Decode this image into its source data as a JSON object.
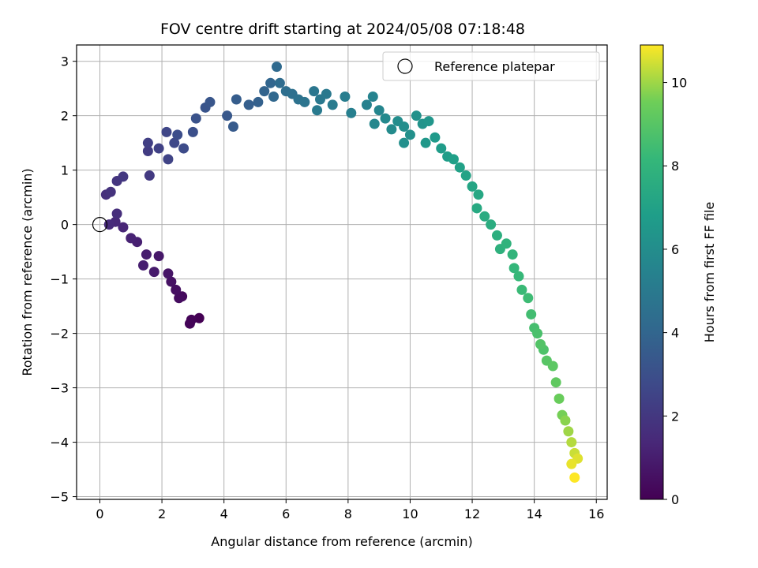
{
  "chart_data": {
    "type": "scatter",
    "title": "FOV centre drift starting at 2024/05/08 07:18:48",
    "xlabel": "Angular distance from reference (arcmin)",
    "ylabel": "Rotation from reference (arcmin)",
    "xlim": [
      -0.75,
      16.35
    ],
    "ylim": [
      -5.05,
      3.3
    ],
    "xticks": [
      0,
      2,
      4,
      6,
      8,
      10,
      12,
      14,
      16
    ],
    "yticks": [
      -5,
      -4,
      -3,
      -2,
      -1,
      0,
      1,
      2,
      3
    ],
    "grid": true,
    "legend": {
      "placement": "top-right",
      "entries": [
        {
          "label": "Reference platepar",
          "marker": "open-circle"
        }
      ]
    },
    "reference_point": {
      "x": 0,
      "y": 0
    },
    "colorbar": {
      "label": "Hours from first FF file",
      "range": [
        0,
        10.9
      ],
      "ticks": [
        0,
        2,
        4,
        6,
        8,
        10
      ],
      "colormap": "viridis"
    },
    "track": [
      [
        3.2,
        -1.72,
        0.0
      ],
      [
        2.95,
        -1.75,
        0.1
      ],
      [
        2.9,
        -1.82,
        0.15
      ],
      [
        2.65,
        -1.32,
        0.3
      ],
      [
        2.55,
        -1.35,
        0.4
      ],
      [
        2.45,
        -1.2,
        0.5
      ],
      [
        2.3,
        -1.05,
        0.6
      ],
      [
        2.2,
        -0.9,
        0.7
      ],
      [
        1.9,
        -0.58,
        0.8
      ],
      [
        1.75,
        -0.87,
        0.9
      ],
      [
        1.5,
        -0.55,
        1.0
      ],
      [
        1.4,
        -0.75,
        1.05
      ],
      [
        1.2,
        -0.32,
        1.1
      ],
      [
        1.0,
        -0.25,
        1.2
      ],
      [
        0.75,
        -0.05,
        1.3
      ],
      [
        0.5,
        0.05,
        1.4
      ],
      [
        0.3,
        0.0,
        1.5
      ],
      [
        0.55,
        0.2,
        1.6
      ],
      [
        0.2,
        0.55,
        1.7
      ],
      [
        0.35,
        0.6,
        1.8
      ],
      [
        0.55,
        0.8,
        1.9
      ],
      [
        0.75,
        0.88,
        2.0
      ],
      [
        1.6,
        0.9,
        2.1
      ],
      [
        1.55,
        1.35,
        2.2
      ],
      [
        1.55,
        1.5,
        2.3
      ],
      [
        1.9,
        1.4,
        2.4
      ],
      [
        2.2,
        1.2,
        2.5
      ],
      [
        2.15,
        1.7,
        2.6
      ],
      [
        2.4,
        1.5,
        2.7
      ],
      [
        2.7,
        1.4,
        2.8
      ],
      [
        2.5,
        1.65,
        2.9
      ],
      [
        3.0,
        1.7,
        3.0
      ],
      [
        3.1,
        1.95,
        3.1
      ],
      [
        3.4,
        2.15,
        3.2
      ],
      [
        3.55,
        2.25,
        3.3
      ],
      [
        4.1,
        2.0,
        3.4
      ],
      [
        4.3,
        1.8,
        3.5
      ],
      [
        4.4,
        2.3,
        3.6
      ],
      [
        4.8,
        2.2,
        3.7
      ],
      [
        5.1,
        2.25,
        3.8
      ],
      [
        5.3,
        2.45,
        3.9
      ],
      [
        5.5,
        2.6,
        4.0
      ],
      [
        5.6,
        2.35,
        4.1
      ],
      [
        5.7,
        2.9,
        4.2
      ],
      [
        5.8,
        2.6,
        4.3
      ],
      [
        6.0,
        2.45,
        4.4
      ],
      [
        6.2,
        2.4,
        4.5
      ],
      [
        6.4,
        2.3,
        4.6
      ],
      [
        6.6,
        2.25,
        4.7
      ],
      [
        6.9,
        2.45,
        4.8
      ],
      [
        7.1,
        2.3,
        4.9
      ],
      [
        7.3,
        2.4,
        5.0
      ],
      [
        7.0,
        2.1,
        5.05
      ],
      [
        7.5,
        2.2,
        5.1
      ],
      [
        7.9,
        2.35,
        5.2
      ],
      [
        8.1,
        2.05,
        5.3
      ],
      [
        8.6,
        2.2,
        5.4
      ],
      [
        8.8,
        2.35,
        5.5
      ],
      [
        9.0,
        2.1,
        5.6
      ],
      [
        8.85,
        1.85,
        5.7
      ],
      [
        9.2,
        1.95,
        5.8
      ],
      [
        9.4,
        1.75,
        5.9
      ],
      [
        9.6,
        1.9,
        6.0
      ],
      [
        9.8,
        1.8,
        6.05
      ],
      [
        9.8,
        1.5,
        6.1
      ],
      [
        10.0,
        1.65,
        6.15
      ],
      [
        10.2,
        2.0,
        6.2
      ],
      [
        10.4,
        1.85,
        6.3
      ],
      [
        10.6,
        1.9,
        6.4
      ],
      [
        10.5,
        1.5,
        6.5
      ],
      [
        10.8,
        1.6,
        6.6
      ],
      [
        11.0,
        1.4,
        6.7
      ],
      [
        11.2,
        1.25,
        6.8
      ],
      [
        11.4,
        1.2,
        6.9
      ],
      [
        11.6,
        1.05,
        7.0
      ],
      [
        11.8,
        0.9,
        7.1
      ],
      [
        12.0,
        0.7,
        7.2
      ],
      [
        12.2,
        0.55,
        7.3
      ],
      [
        12.15,
        0.3,
        7.4
      ],
      [
        12.4,
        0.15,
        7.5
      ],
      [
        12.6,
        0.0,
        7.6
      ],
      [
        12.8,
        -0.2,
        7.7
      ],
      [
        12.9,
        -0.45,
        7.8
      ],
      [
        13.1,
        -0.35,
        7.9
      ],
      [
        13.3,
        -0.55,
        8.0
      ],
      [
        13.35,
        -0.8,
        8.1
      ],
      [
        13.5,
        -0.95,
        8.2
      ],
      [
        13.6,
        -1.2,
        8.3
      ],
      [
        13.8,
        -1.35,
        8.4
      ],
      [
        13.9,
        -1.65,
        8.5
      ],
      [
        14.0,
        -1.9,
        8.6
      ],
      [
        14.1,
        -2.0,
        8.7
      ],
      [
        14.3,
        -2.3,
        8.8
      ],
      [
        14.2,
        -2.2,
        8.9
      ],
      [
        14.4,
        -2.5,
        9.0
      ],
      [
        14.6,
        -2.6,
        9.1
      ],
      [
        14.7,
        -2.9,
        9.2
      ],
      [
        14.8,
        -3.2,
        9.4
      ],
      [
        14.9,
        -3.5,
        9.6
      ],
      [
        15.0,
        -3.6,
        9.8
      ],
      [
        15.1,
        -3.8,
        10.0
      ],
      [
        15.2,
        -4.0,
        10.2
      ],
      [
        15.3,
        -4.2,
        10.4
      ],
      [
        15.4,
        -4.3,
        10.6
      ],
      [
        15.2,
        -4.4,
        10.7
      ],
      [
        15.3,
        -4.65,
        10.9
      ]
    ]
  }
}
